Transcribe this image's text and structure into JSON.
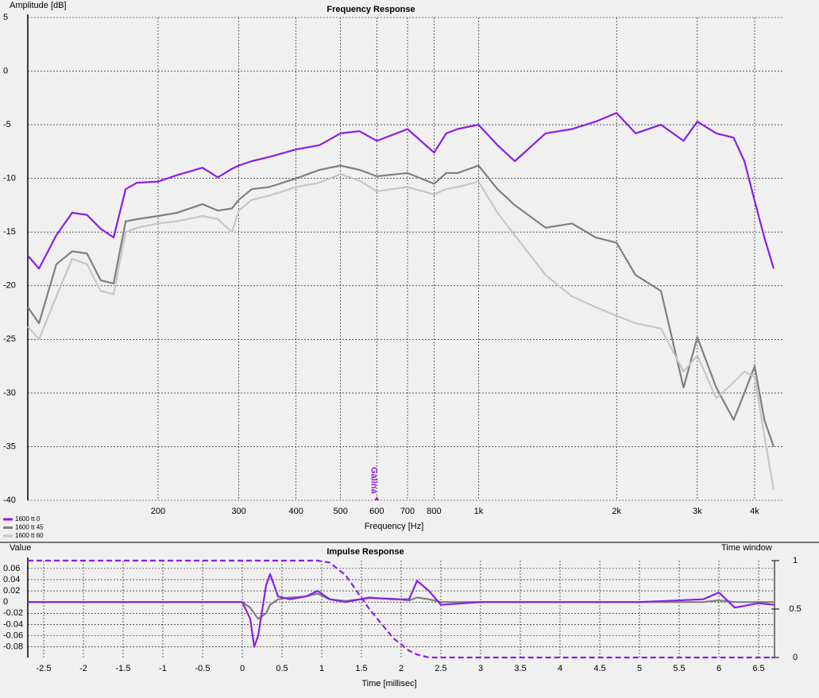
{
  "chart_data": [
    {
      "type": "line",
      "title": "Frequency Response",
      "y_label": "Amplitude [dB]",
      "x_label": "Frequency [Hz]",
      "log_x": true,
      "grid": true,
      "xlim": [
        104,
        4600
      ],
      "ylim": [
        -40,
        5
      ],
      "xticks": [
        200,
        300,
        400,
        500,
        600,
        700,
        800,
        {
          "value": 1000,
          "label": "1k"
        },
        {
          "value": 2000,
          "label": "2k"
        },
        {
          "value": 3000,
          "label": "3k"
        },
        {
          "value": 4000,
          "label": "4k"
        }
      ],
      "yticks": [
        -40,
        -35,
        -30,
        -25,
        -20,
        -15,
        -10,
        -5,
        0,
        5
      ],
      "x": [
        104,
        110,
        120,
        130,
        140,
        150,
        160,
        170,
        180,
        200,
        220,
        250,
        270,
        290,
        300,
        320,
        350,
        400,
        450,
        500,
        550,
        600,
        700,
        800,
        850,
        900,
        1000,
        1100,
        1200,
        1400,
        1600,
        1800,
        2000,
        2200,
        2500,
        2800,
        3000,
        3300,
        3600,
        3800,
        4000,
        4200,
        4400
      ],
      "series": [
        {
          "name": "1600 tt 0",
          "color": "#8a1ee8",
          "values": [
            -17.2,
            -18.4,
            -15.3,
            -13.2,
            -13.4,
            -14.7,
            -15.5,
            -11,
            -10.4,
            -10.3,
            -9.7,
            -9,
            -9.9,
            -9.1,
            -8.8,
            -8.4,
            -8,
            -7.3,
            -6.9,
            -5.8,
            -5.6,
            -6.5,
            -5.4,
            -7.6,
            -5.8,
            -5.4,
            -5,
            -6.9,
            -8.4,
            -5.8,
            -5.4,
            -4.7,
            -3.9,
            -5.8,
            -5,
            -6.5,
            -4.7,
            -5.8,
            -6.2,
            -8.4,
            -12.1,
            -15.5,
            -18.4
          ]
        },
        {
          "name": "1600 tt 45",
          "color": "#7f7f7f",
          "values": [
            -22,
            -23.5,
            -18,
            -16.8,
            -17,
            -19.5,
            -19.8,
            -14,
            -13.8,
            -13.5,
            -13.2,
            -12.4,
            -13,
            -12.8,
            -12,
            -11,
            -10.8,
            -10,
            -9.2,
            -8.8,
            -9.2,
            -9.8,
            -9.5,
            -10.5,
            -9.5,
            -9.5,
            -8.8,
            -11,
            -12.5,
            -14.6,
            -14.2,
            -15.5,
            -16,
            -19,
            -20.5,
            -29.5,
            -24.8,
            -29.5,
            -32.5,
            -30,
            -27.5,
            -32.5,
            -35
          ]
        },
        {
          "name": "1600 tt 60",
          "color": "#c6c6c6",
          "values": [
            -23.8,
            -25,
            -21,
            -17.5,
            -18,
            -20.5,
            -20.8,
            -15,
            -14.6,
            -14.2,
            -14,
            -13.5,
            -13.8,
            -15,
            -13,
            -12,
            -11.6,
            -10.8,
            -10.4,
            -9.6,
            -10.2,
            -11.2,
            -10.8,
            -11.5,
            -11,
            -10.8,
            -10.3,
            -13.2,
            -15.3,
            -19,
            -21,
            -22,
            -22.8,
            -23.5,
            -24,
            -28,
            -26.5,
            -30.5,
            -29,
            -28,
            -28.5,
            -34,
            -39
          ]
        }
      ],
      "annotations": [
        {
          "text": "Galina",
          "x": 600,
          "color": "#8a1ee8"
        }
      ]
    },
    {
      "type": "line",
      "title": "Impulse Response",
      "y_label": "Value",
      "y2_label": "Time window",
      "x_label": "Time [millisec]",
      "grid": true,
      "xlim": [
        -2.7,
        6.7
      ],
      "ylim": [
        -0.099,
        0.074
      ],
      "y2lim": [
        0,
        1
      ],
      "xticks": [
        -2.5,
        -2,
        -1.5,
        -1,
        -0.5,
        0,
        0.5,
        1,
        1.5,
        2,
        2.5,
        3,
        3.5,
        4,
        4.5,
        5,
        5.5,
        6,
        6.5
      ],
      "yticks": [
        -0.08,
        -0.06,
        -0.04,
        -0.02,
        0,
        0.02,
        0.04,
        0.06
      ],
      "y2ticks": [
        0,
        0.5,
        1
      ],
      "x": [
        -2.7,
        -2,
        -1.5,
        -1,
        -0.5,
        0,
        0.1,
        0.15,
        0.2,
        0.3,
        0.35,
        0.45,
        0.6,
        0.8,
        0.95,
        1.1,
        1.3,
        1.6,
        1.9,
        2.1,
        2.2,
        2.35,
        2.5,
        3,
        4,
        5,
        5.8,
        6,
        6.2,
        6.5,
        6.7
      ],
      "series": [
        {
          "color": "#7f7f7f",
          "values": [
            0,
            0,
            0,
            0,
            0,
            0,
            -0.01,
            -0.02,
            -0.03,
            -0.02,
            -0.005,
            0.005,
            0.008,
            0.01,
            0.015,
            0.005,
            0.002,
            0.007,
            0.006,
            0.003,
            0.008,
            0.005,
            0,
            0,
            0,
            0,
            0,
            0.003,
            0,
            0,
            0
          ]
        },
        {
          "color": "#8a1ee8",
          "values": [
            0,
            0,
            0,
            0,
            0,
            0,
            -0.03,
            -0.08,
            -0.06,
            0.03,
            0.05,
            0.01,
            0.005,
            0.01,
            0.02,
            0.005,
            0,
            0.008,
            0.005,
            0.005,
            0.038,
            0.02,
            -0.005,
            0,
            0,
            0,
            0.005,
            0.017,
            -0.01,
            -0.002,
            -0.005
          ]
        },
        {
          "color": "#8a1ee8",
          "axis": "y2",
          "style": "dashed",
          "values": [
            1,
            1,
            1,
            1,
            1,
            1,
            1,
            1,
            1,
            1,
            1,
            1,
            1,
            1,
            1,
            0.98,
            0.85,
            0.5,
            0.2,
            0.07,
            0.03,
            0,
            0,
            0,
            0,
            0,
            0,
            0,
            0,
            0,
            0
          ]
        }
      ]
    }
  ]
}
